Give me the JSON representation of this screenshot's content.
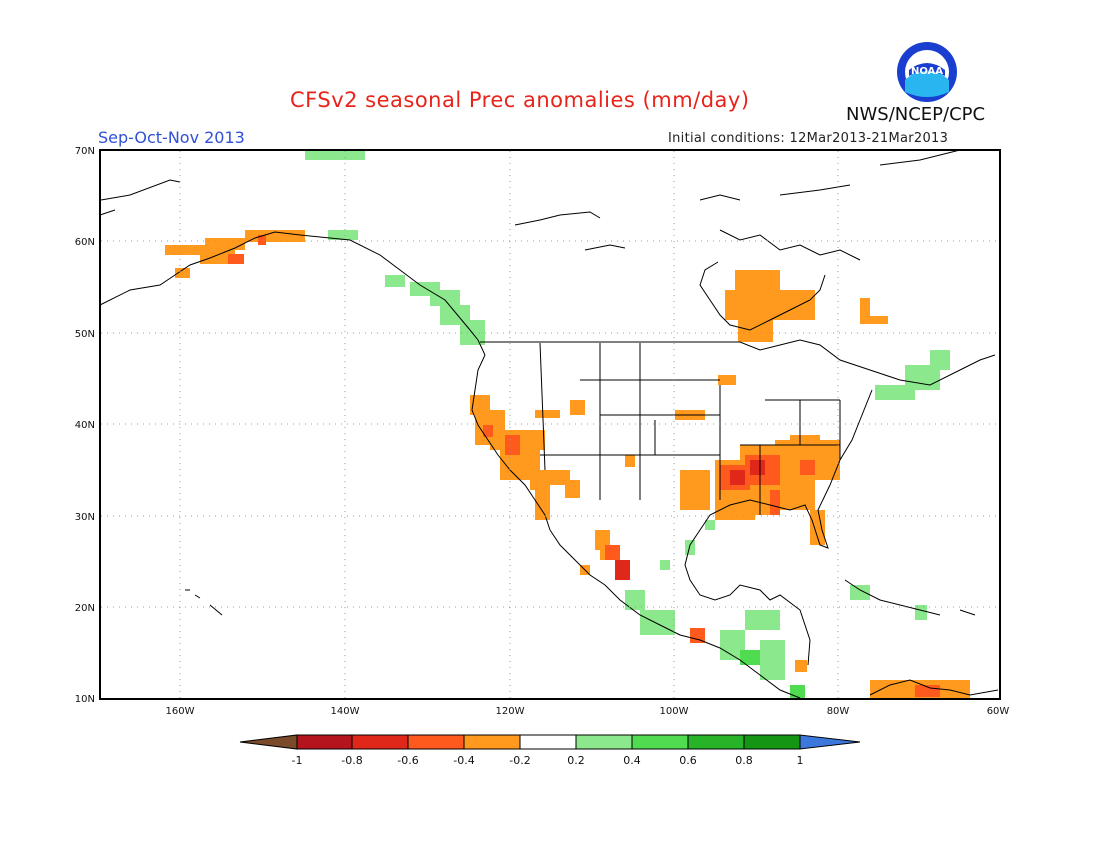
{
  "title": "CFSv2 seasonal Prec anomalies (mm/day)",
  "agency": "NWS/NCEP/CPC",
  "logo_text": "NOAA",
  "season": "Sep-Oct-Nov 2013",
  "initial_conditions": "Initial conditions: 12Mar2013-21Mar2013",
  "lat_labels": [
    "70N",
    "60N",
    "50N",
    "40N",
    "30N",
    "20N",
    "10N"
  ],
  "lon_labels": [
    "160W",
    "140W",
    "120W",
    "100W",
    "80W",
    "60W"
  ],
  "colorbar": {
    "ticks": [
      "-1",
      "-0.8",
      "-0.6",
      "-0.4",
      "-0.2",
      "0.2",
      "0.4",
      "0.6",
      "0.8",
      "1"
    ],
    "colors": [
      "#7a4a2a",
      "#b4141e",
      "#e0281a",
      "#ff5a1e",
      "#ff9a1e",
      "#ffffff",
      "#8ce88c",
      "#50dc50",
      "#28b428",
      "#149614",
      "#3c78dc"
    ]
  },
  "colors": {
    "dry_light": "#ff9a1e",
    "dry_mid": "#ff5a1e",
    "dry_strong": "#e0281a",
    "dry_extreme": "#b4141e",
    "wet_light": "#8ce88c",
    "wet_mid": "#50dc50",
    "wet_strong": "#28b428"
  }
}
